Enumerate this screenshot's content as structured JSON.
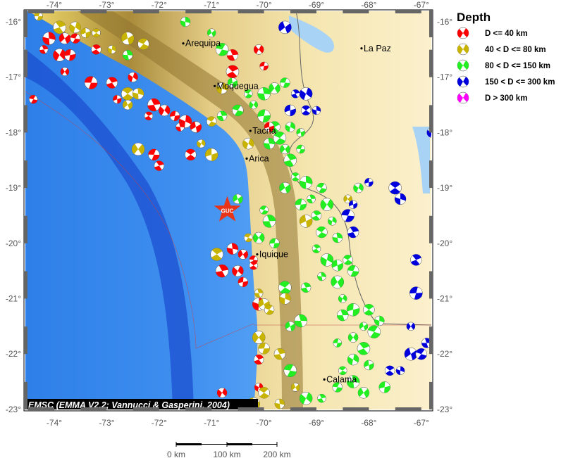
{
  "map": {
    "lon_range": [
      -74.55,
      -66.8
    ],
    "lat_range": [
      -23.0,
      -15.8
    ],
    "lon_ticks": [
      "-74°",
      "-73°",
      "-72°",
      "-71°",
      "-70°",
      "-69°",
      "-68°",
      "-67°"
    ],
    "lat_ticks": [
      "-16°",
      "-17°",
      "-18°",
      "-19°",
      "-20°",
      "-21°",
      "-22°",
      "-23°"
    ],
    "cities": [
      {
        "name": "Arequipa",
        "lon": -71.54,
        "lat": -16.39
      },
      {
        "name": "La Paz",
        "lon": -68.14,
        "lat": -16.48
      },
      {
        "name": "Moquegua",
        "lon": -70.94,
        "lat": -17.16
      },
      {
        "name": "Tacna",
        "lon": -70.26,
        "lat": -17.97
      },
      {
        "name": "Arica",
        "lon": -70.33,
        "lat": -18.47
      },
      {
        "name": "Iquique",
        "lon": -70.13,
        "lat": -20.2
      },
      {
        "name": "Calama",
        "lon": -68.85,
        "lat": -22.46
      }
    ],
    "station": {
      "code": "GUC",
      "lon": -70.7,
      "lat": -19.4,
      "color": "#e8351a"
    },
    "credit": "EMSC (EMMA V2.2; Vannucci & Gasperini, 2004)",
    "scale_labels": [
      "0 km",
      "100 km",
      "200 km"
    ]
  },
  "legend": {
    "title": "Depth",
    "items": [
      {
        "label": "D <= 40 km",
        "color": "#ff0000"
      },
      {
        "label": "40 < D <= 80 km",
        "color": "#c8b400"
      },
      {
        "label": "80 < D <= 150 km",
        "color": "#22ee22"
      },
      {
        "label": "150 < D <= 300 km",
        "color": "#0000dd"
      },
      {
        "label": "D > 300 km",
        "color": "#ff00ff"
      }
    ]
  },
  "events": [
    [
      -74.3,
      -15.9,
      1
    ],
    [
      -73.9,
      -16.1,
      1
    ],
    [
      -73.6,
      -16.1,
      1
    ],
    [
      -73.4,
      -16.2,
      1
    ],
    [
      -73.2,
      -16.2,
      1
    ],
    [
      -74.1,
      -16.3,
      0
    ],
    [
      -73.8,
      -16.3,
      0
    ],
    [
      -73.6,
      -16.3,
      0
    ],
    [
      -74.2,
      -16.5,
      0
    ],
    [
      -73.9,
      -16.6,
      0
    ],
    [
      -73.7,
      -16.6,
      0
    ],
    [
      -73.2,
      -16.5,
      0
    ],
    [
      -72.9,
      -16.5,
      1
    ],
    [
      -72.6,
      -16.3,
      1
    ],
    [
      -72.3,
      -16.4,
      1
    ],
    [
      -72.6,
      -16.6,
      2
    ],
    [
      -73.8,
      -16.9,
      0
    ],
    [
      -73.3,
      -17.1,
      0
    ],
    [
      -72.9,
      -17.1,
      0
    ],
    [
      -72.5,
      -17.0,
      0
    ],
    [
      -72.8,
      -17.4,
      0
    ],
    [
      -72.6,
      -17.3,
      1
    ],
    [
      -72.4,
      -17.3,
      1
    ],
    [
      -72.6,
      -17.5,
      1
    ],
    [
      -74.4,
      -17.4,
      0
    ],
    [
      -72.1,
      -17.5,
      0
    ],
    [
      -71.9,
      -17.6,
      0
    ],
    [
      -71.7,
      -17.7,
      0
    ],
    [
      -72.2,
      -17.7,
      0
    ],
    [
      -71.5,
      -17.8,
      0
    ],
    [
      -71.3,
      -17.9,
      0
    ],
    [
      -71.0,
      -17.8,
      1
    ],
    [
      -71.6,
      -17.9,
      0
    ],
    [
      -72.4,
      -18.3,
      1
    ],
    [
      -72.1,
      -18.4,
      0
    ],
    [
      -72.0,
      -18.6,
      0
    ],
    [
      -71.2,
      -18.2,
      1
    ],
    [
      -71.0,
      -18.4,
      1
    ],
    [
      -71.4,
      -18.4,
      0
    ],
    [
      -71.5,
      -16.0,
      2
    ],
    [
      -71.0,
      -16.2,
      2
    ],
    [
      -70.8,
      -16.5,
      2
    ],
    [
      -70.6,
      -16.6,
      0
    ],
    [
      -70.1,
      -16.5,
      0
    ],
    [
      -70.0,
      -16.8,
      0
    ],
    [
      -70.6,
      -16.9,
      0
    ],
    [
      -70.8,
      -17.2,
      1
    ],
    [
      -70.6,
      -17.1,
      2
    ],
    [
      -70.3,
      -17.3,
      2
    ],
    [
      -70.0,
      -17.3,
      2
    ],
    [
      -69.8,
      -17.2,
      2
    ],
    [
      -69.6,
      -17.1,
      2
    ],
    [
      -69.4,
      -17.3,
      3
    ],
    [
      -69.2,
      -17.3,
      3
    ],
    [
      -69.5,
      -17.6,
      3
    ],
    [
      -69.2,
      -17.6,
      3
    ],
    [
      -69.0,
      -17.6,
      3
    ],
    [
      -69.6,
      -16.1,
      3
    ],
    [
      -70.5,
      -17.6,
      2
    ],
    [
      -70.8,
      -17.7,
      2
    ],
    [
      -70.2,
      -17.5,
      2
    ],
    [
      -70.0,
      -17.7,
      2
    ],
    [
      -69.8,
      -17.9,
      2
    ],
    [
      -69.5,
      -17.9,
      2
    ],
    [
      -69.3,
      -18.0,
      2
    ],
    [
      -69.7,
      -18.1,
      2
    ],
    [
      -69.9,
      -18.2,
      2
    ],
    [
      -69.6,
      -18.3,
      2
    ],
    [
      -69.3,
      -18.3,
      2
    ],
    [
      -69.5,
      -18.5,
      2
    ],
    [
      -70.3,
      -18.2,
      1
    ],
    [
      -69.9,
      -17.9,
      0
    ],
    [
      -69.4,
      -18.8,
      2
    ],
    [
      -69.2,
      -18.9,
      2
    ],
    [
      -69.6,
      -19.0,
      2
    ],
    [
      -68.9,
      -19.0,
      2
    ],
    [
      -69.1,
      -19.2,
      2
    ],
    [
      -68.8,
      -19.3,
      2
    ],
    [
      -69.3,
      -19.3,
      2
    ],
    [
      -69.0,
      -19.5,
      2
    ],
    [
      -68.7,
      -19.6,
      2
    ],
    [
      -69.2,
      -19.6,
      1
    ],
    [
      -68.9,
      -19.8,
      2
    ],
    [
      -68.6,
      -19.9,
      2
    ],
    [
      -68.4,
      -19.2,
      1
    ],
    [
      -68.4,
      -19.5,
      3
    ],
    [
      -68.3,
      -19.8,
      3
    ],
    [
      -68.2,
      -19.0,
      2
    ],
    [
      -68.0,
      -18.9,
      3
    ],
    [
      -67.5,
      -19.0,
      3
    ],
    [
      -67.4,
      -19.2,
      3
    ],
    [
      -70.5,
      -19.2,
      2
    ],
    [
      -70.0,
      -19.4,
      2
    ],
    [
      -69.9,
      -19.6,
      2
    ],
    [
      -70.1,
      -19.9,
      2
    ],
    [
      -69.8,
      -20.0,
      2
    ],
    [
      -69.0,
      -20.1,
      2
    ],
    [
      -68.8,
      -20.3,
      2
    ],
    [
      -68.6,
      -20.4,
      2
    ],
    [
      -68.4,
      -20.3,
      2
    ],
    [
      -68.9,
      -20.6,
      2
    ],
    [
      -68.6,
      -20.7,
      2
    ],
    [
      -68.3,
      -20.5,
      2
    ],
    [
      -69.2,
      -20.8,
      2
    ],
    [
      -68.5,
      -21.0,
      2
    ],
    [
      -68.3,
      -21.2,
      2
    ],
    [
      -68.0,
      -21.2,
      2
    ],
    [
      -67.8,
      -21.4,
      2
    ],
    [
      -68.1,
      -21.5,
      2
    ],
    [
      -67.9,
      -21.6,
      2
    ],
    [
      -68.5,
      -21.3,
      2
    ],
    [
      -68.3,
      -21.7,
      2
    ],
    [
      -68.6,
      -21.8,
      2
    ],
    [
      -68.1,
      -21.9,
      2
    ],
    [
      -68.3,
      -22.1,
      2
    ],
    [
      -68.0,
      -22.2,
      2
    ],
    [
      -68.5,
      -22.3,
      2
    ],
    [
      -68.3,
      -22.5,
      2
    ],
    [
      -68.1,
      -22.7,
      2
    ],
    [
      -68.6,
      -22.6,
      2
    ],
    [
      -68.9,
      -22.8,
      2
    ],
    [
      -69.2,
      -22.8,
      2
    ],
    [
      -67.7,
      -22.6,
      2
    ],
    [
      -67.6,
      -22.3,
      3
    ],
    [
      -67.4,
      -22.3,
      3
    ],
    [
      -67.2,
      -22.0,
      3
    ],
    [
      -67.0,
      -22.0,
      3
    ],
    [
      -66.9,
      -21.8,
      3
    ],
    [
      -67.2,
      -21.5,
      3
    ],
    [
      -67.1,
      -20.9,
      3
    ],
    [
      -67.1,
      -20.3,
      3
    ],
    [
      -66.8,
      -18.0,
      3
    ],
    [
      -68.3,
      -19.3,
      3
    ],
    [
      -69.6,
      -20.8,
      2
    ],
    [
      -70.6,
      -20.1,
      0
    ],
    [
      -70.4,
      -20.2,
      0
    ],
    [
      -70.2,
      -20.3,
      0
    ],
    [
      -70.8,
      -20.5,
      0
    ],
    [
      -70.5,
      -20.5,
      0
    ],
    [
      -70.4,
      -20.7,
      0
    ],
    [
      -70.2,
      -20.4,
      0
    ],
    [
      -70.1,
      -21.1,
      0
    ],
    [
      -70.0,
      -21.1,
      1
    ],
    [
      -69.9,
      -21.2,
      1
    ],
    [
      -70.1,
      -20.9,
      1
    ],
    [
      -70.1,
      -21.7,
      1
    ],
    [
      -70.0,
      -21.9,
      1
    ],
    [
      -70.1,
      -22.1,
      0
    ],
    [
      -70.1,
      -22.6,
      0
    ],
    [
      -70.2,
      -22.9,
      1
    ],
    [
      -70.0,
      -22.7,
      1
    ],
    [
      -69.7,
      -22.9,
      1
    ],
    [
      -69.4,
      -22.6,
      1
    ],
    [
      -69.5,
      -22.3,
      2
    ],
    [
      -69.7,
      -22.0,
      1
    ],
    [
      -70.8,
      -22.7,
      0
    ],
    [
      -70.5,
      -22.9,
      0
    ],
    [
      -70.9,
      -20.2,
      1
    ],
    [
      -69.6,
      -21.0,
      1
    ],
    [
      -69.5,
      -21.5,
      2
    ],
    [
      -70.3,
      -19.9,
      1
    ],
    [
      -69.3,
      -21.4,
      2
    ]
  ]
}
